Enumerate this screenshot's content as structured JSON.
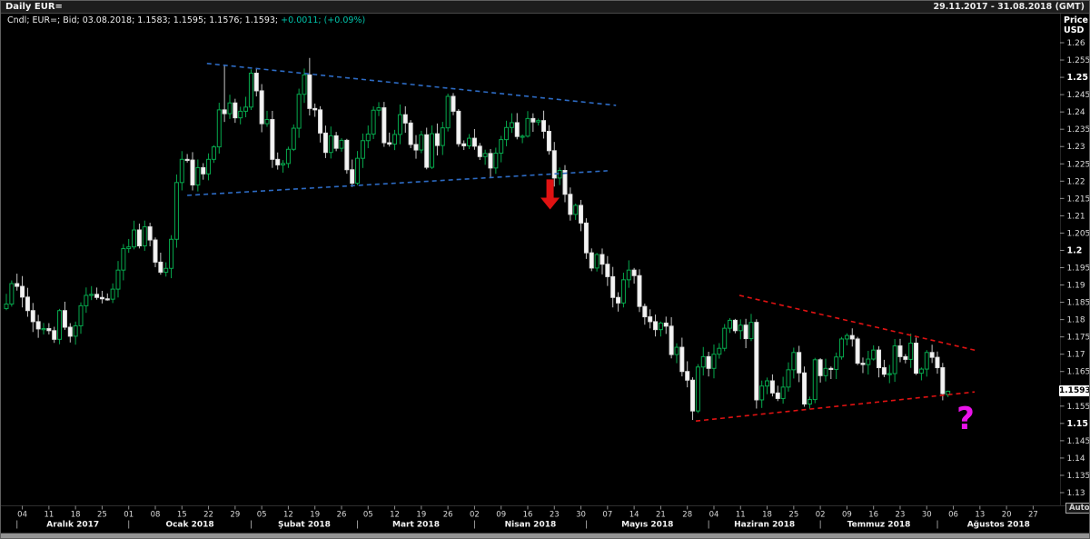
{
  "window": {
    "title": "Daily EUR=",
    "date_range": "29.11.2017 - 31.08.2018 (GMT)"
  },
  "legend": {
    "instrument_info": "Cndl; EUR=; Bid; 03.08.2018; 1.1583; 1.1595; 1.1576; 1.1593;",
    "change": "+0.0011; (+0.09%)"
  },
  "price_axis": {
    "header_line1": "Price",
    "header_line2": "USD",
    "min": 1.13,
    "max": 1.26,
    "step": 0.005,
    "tick_labels": [
      "1.26",
      "1.255",
      "1.25",
      "1.245",
      "1.24",
      "1.235",
      "1.23",
      "1.225",
      "1.22",
      "1.215",
      "1.21",
      "1.205",
      "1.2",
      "1.195",
      "1.19",
      "1.185",
      "1.18",
      "1.175",
      "1.17",
      "1.165",
      "1.16",
      "1.155",
      "1.15",
      "1.145",
      "1.14",
      "1.135",
      "1.13"
    ],
    "bold_ticks": [
      "1.25",
      "1.2",
      "1.15"
    ],
    "last_price_label": "1.1593",
    "auto_button": "Auto"
  },
  "x_axis": {
    "week_ticks": [
      {
        "label": "04",
        "i": 3
      },
      {
        "label": "11",
        "i": 8
      },
      {
        "label": "18",
        "i": 13
      },
      {
        "label": "25",
        "i": 18
      },
      {
        "label": "01",
        "i": 23
      },
      {
        "label": "08",
        "i": 28
      },
      {
        "label": "15",
        "i": 33
      },
      {
        "label": "22",
        "i": 38
      },
      {
        "label": "29",
        "i": 43
      },
      {
        "label": "05",
        "i": 48
      },
      {
        "label": "12",
        "i": 53
      },
      {
        "label": "19",
        "i": 58
      },
      {
        "label": "26",
        "i": 63
      },
      {
        "label": "05",
        "i": 68
      },
      {
        "label": "12",
        "i": 73
      },
      {
        "label": "19",
        "i": 78
      },
      {
        "label": "26",
        "i": 83
      },
      {
        "label": "02",
        "i": 88
      },
      {
        "label": "09",
        "i": 93
      },
      {
        "label": "16",
        "i": 98
      },
      {
        "label": "23",
        "i": 103
      },
      {
        "label": "30",
        "i": 108
      },
      {
        "label": "07",
        "i": 113
      },
      {
        "label": "14",
        "i": 118
      },
      {
        "label": "21",
        "i": 123
      },
      {
        "label": "28",
        "i": 128
      },
      {
        "label": "04",
        "i": 133
      },
      {
        "label": "11",
        "i": 138
      },
      {
        "label": "18",
        "i": 143
      },
      {
        "label": "25",
        "i": 148
      },
      {
        "label": "02",
        "i": 153
      },
      {
        "label": "09",
        "i": 158
      },
      {
        "label": "16",
        "i": 163
      },
      {
        "label": "23",
        "i": 168
      },
      {
        "label": "30",
        "i": 173
      },
      {
        "label": "06",
        "i": 178
      },
      {
        "label": "13",
        "i": 183
      },
      {
        "label": "20",
        "i": 188
      },
      {
        "label": "27",
        "i": 193
      }
    ],
    "months": [
      {
        "label": "Aralık 2017",
        "start_i": 2,
        "center_i": 12.5
      },
      {
        "label": "Ocak 2018",
        "start_i": 23,
        "center_i": 34.5
      },
      {
        "label": "Şubat 2018",
        "start_i": 46,
        "center_i": 56
      },
      {
        "label": "Mart 2018",
        "start_i": 66,
        "center_i": 77
      },
      {
        "label": "Nisan 2018",
        "start_i": 88,
        "center_i": 98.5
      },
      {
        "label": "Mayıs 2018",
        "start_i": 109,
        "center_i": 120.5
      },
      {
        "label": "Haziran 2018",
        "start_i": 132,
        "center_i": 142.5
      },
      {
        "label": "Temmuz 2018",
        "start_i": 153,
        "center_i": 164
      },
      {
        "label": "Ağustos 2018",
        "start_i": 175,
        "center_i": 186.5
      }
    ]
  },
  "chart_data": {
    "type": "candlestick",
    "instrument": "EUR=",
    "interval": "Daily",
    "ylim": [
      1.13,
      1.26
    ],
    "first_open": 1.1832,
    "closes": [
      1.1845,
      1.1904,
      1.1896,
      1.1865,
      1.1826,
      1.1794,
      1.1773,
      1.1774,
      1.1768,
      1.1743,
      1.1826,
      1.1778,
      1.1752,
      1.1782,
      1.184,
      1.187,
      1.1873,
      1.1864,
      1.186,
      1.1859,
      1.1888,
      1.1943,
      1.2005,
      1.201,
      1.2059,
      1.2013,
      1.2068,
      1.203,
      1.1966,
      1.1937,
      1.1948,
      1.2032,
      1.2196,
      1.2263,
      1.2261,
      1.2189,
      1.2239,
      1.2221,
      1.2263,
      1.2299,
      1.2406,
      1.2395,
      1.2426,
      1.2383,
      1.2402,
      1.2414,
      1.2512,
      1.2461,
      1.2366,
      1.2378,
      1.2263,
      1.2247,
      1.2251,
      1.2292,
      1.2353,
      1.2451,
      1.2507,
      1.241,
      1.2406,
      1.2339,
      1.2283,
      1.2331,
      1.2295,
      1.2318,
      1.2233,
      1.2194,
      1.2266,
      1.2317,
      1.2336,
      1.2405,
      1.2412,
      1.2311,
      1.2307,
      1.2335,
      1.2392,
      1.2368,
      1.2306,
      1.229,
      1.2334,
      1.224,
      1.2337,
      1.2303,
      1.2354,
      1.2445,
      1.2402,
      1.2308,
      1.2302,
      1.2324,
      1.2301,
      1.2271,
      1.228,
      1.2238,
      1.2281,
      1.232,
      1.2355,
      1.2369,
      1.2329,
      1.233,
      1.2381,
      1.2371,
      1.2375,
      1.2344,
      1.2288,
      1.2209,
      1.2231,
      1.2162,
      1.2104,
      1.213,
      1.2079,
      1.1993,
      1.1949,
      1.1988,
      1.196,
      1.1924,
      1.1864,
      1.1848,
      1.1915,
      1.1943,
      1.1927,
      1.1838,
      1.1808,
      1.1794,
      1.1771,
      1.179,
      1.1781,
      1.1699,
      1.172,
      1.165,
      1.1625,
      1.1536,
      1.1663,
      1.1693,
      1.1659,
      1.17,
      1.1717,
      1.1775,
      1.1798,
      1.1768,
      1.1784,
      1.1745,
      1.1792,
      1.1568,
      1.1608,
      1.1623,
      1.1588,
      1.1572,
      1.1605,
      1.1655,
      1.1705,
      1.1646,
      1.1556,
      1.1569,
      1.1684,
      1.1638,
      1.1659,
      1.1656,
      1.1692,
      1.1744,
      1.1754,
      1.1744,
      1.1674,
      1.167,
      1.1686,
      1.1712,
      1.1661,
      1.1642,
      1.1644,
      1.1724,
      1.1693,
      1.1685,
      1.1732,
      1.1645,
      1.1657,
      1.1705,
      1.1691,
      1.1661,
      1.1586,
      1.1593
    ],
    "wick_overrides": {
      "41": [
        1.2537,
        null
      ],
      "46": [
        1.2523,
        null
      ],
      "57": [
        1.2556,
        null
      ],
      "129": [
        null,
        1.151
      ],
      "141": [
        1.1801,
        1.1543
      ]
    },
    "last_candle_ohlc": [
      1.1583,
      1.1595,
      1.1576,
      1.1593
    ],
    "trendlines": [
      {
        "name": "upper-blue-trendline",
        "color_key": "blue",
        "i1": 37.7,
        "p1": 1.254,
        "i2": 114.6,
        "p2": 1.2419
      },
      {
        "name": "lower-blue-trendline",
        "color_key": "blue",
        "i1": 34.0,
        "p1": 1.2159,
        "i2": 113.0,
        "p2": 1.223
      },
      {
        "name": "upper-red-trendline",
        "color_key": "red",
        "i1": 137.8,
        "p1": 1.187,
        "i2": 182.5,
        "p2": 1.171
      },
      {
        "name": "lower-red-trendline",
        "color_key": "red",
        "i1": 129.6,
        "p1": 1.1507,
        "i2": 182.0,
        "p2": 1.1591
      }
    ],
    "annotations": [
      {
        "type": "arrow-down",
        "name": "breakdown-arrow",
        "i": 102.2,
        "p_from": 1.2205,
        "p_to": 1.2118
      },
      {
        "type": "question-mark",
        "name": "question-mark-annotation",
        "i": 180.3,
        "p": 1.1518,
        "text": "?"
      }
    ]
  },
  "colors": {
    "candle_up": "#06a94d",
    "candle_down_body": "#f4f4f4",
    "candle_down_border": "#e2e2e2",
    "candle_down_wick": "#c6c6c6",
    "blue": "#2d6bc4",
    "red": "#e01212",
    "arrow": "#e01212",
    "question": "#ea13ea",
    "change_positive": "#00c2a9",
    "axis_text": "#d9d9d9",
    "axis_text_bold": "#ffffff",
    "marker_bg": "#ffffff"
  }
}
